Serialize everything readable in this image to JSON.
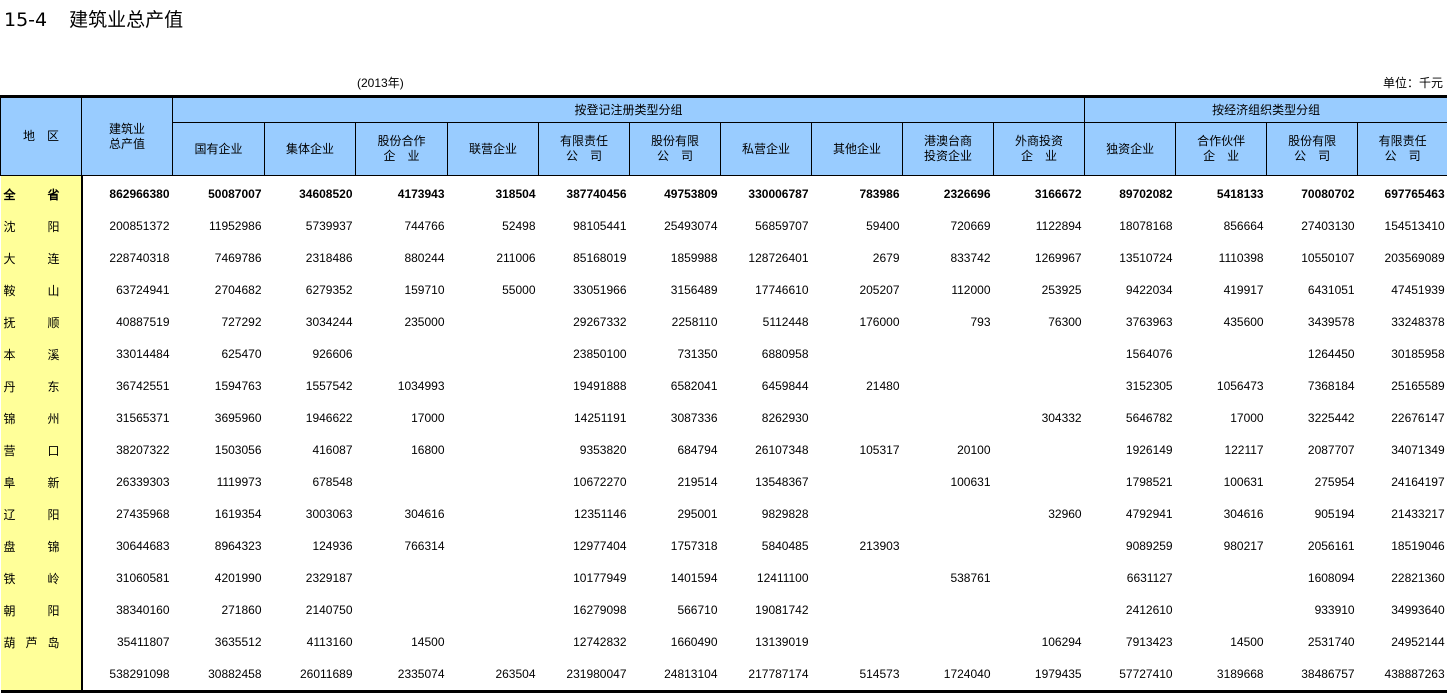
{
  "title": {
    "number": "15-4",
    "text": "建筑业总产值"
  },
  "year": "(2013年)",
  "unit": "单位：千元",
  "header": {
    "region": "地　区",
    "total": "建筑业\n总产值",
    "group1": "按登记注册类型分组",
    "group2": "按经济组织类型分组",
    "group1_cols": [
      "国有企业",
      "集体企业",
      "股份合作\n企　业",
      "联营企业",
      "有限责任\n公　司",
      "股份有限\n公　司",
      "私营企业",
      "其他企业",
      "港澳台商\n投资企业",
      "外商投资\n企　业"
    ],
    "group2_cols": [
      "独资企业",
      "合作伙伴\n企　业",
      "股份有限\n公　司",
      "有限责任\n公　司"
    ]
  },
  "colors": {
    "header_bg": "#99ccff",
    "region_bg": "#ffff99"
  },
  "rows": [
    {
      "region": "全 省",
      "values": [
        "862966380",
        "50087007",
        "34608520",
        "4173943",
        "318504",
        "387740456",
        "49753809",
        "330006787",
        "783986",
        "2326696",
        "3166672",
        "89702082",
        "5418133",
        "70080702",
        "697765463"
      ]
    },
    {
      "region": "沈 阳",
      "values": [
        "200851372",
        "11952986",
        "5739937",
        "744766",
        "52498",
        "98105441",
        "25493074",
        "56859707",
        "59400",
        "720669",
        "1122894",
        "18078168",
        "856664",
        "27403130",
        "154513410"
      ]
    },
    {
      "region": "大 连",
      "values": [
        "228740318",
        "7469786",
        "2318486",
        "880244",
        "211006",
        "85168019",
        "1859988",
        "128726401",
        "2679",
        "833742",
        "1269967",
        "13510724",
        "1110398",
        "10550107",
        "203569089"
      ]
    },
    {
      "region": "鞍 山",
      "values": [
        "63724941",
        "2704682",
        "6279352",
        "159710",
        "55000",
        "33051966",
        "3156489",
        "17746610",
        "205207",
        "112000",
        "253925",
        "9422034",
        "419917",
        "6431051",
        "47451939"
      ]
    },
    {
      "region": "抚 顺",
      "values": [
        "40887519",
        "727292",
        "3034244",
        "235000",
        "",
        "29267332",
        "2258110",
        "5112448",
        "176000",
        "793",
        "76300",
        "3763963",
        "435600",
        "3439578",
        "33248378"
      ]
    },
    {
      "region": "本 溪",
      "values": [
        "33014484",
        "625470",
        "926606",
        "",
        "",
        "23850100",
        "731350",
        "6880958",
        "",
        "",
        "",
        "1564076",
        "",
        "1264450",
        "30185958"
      ]
    },
    {
      "region": "丹 东",
      "values": [
        "36742551",
        "1594763",
        "1557542",
        "1034993",
        "",
        "19491888",
        "6582041",
        "6459844",
        "21480",
        "",
        "",
        "3152305",
        "1056473",
        "7368184",
        "25165589"
      ]
    },
    {
      "region": "锦 州",
      "values": [
        "31565371",
        "3695960",
        "1946622",
        "17000",
        "",
        "14251191",
        "3087336",
        "8262930",
        "",
        "",
        "304332",
        "5646782",
        "17000",
        "3225442",
        "22676147"
      ]
    },
    {
      "region": "营 口",
      "values": [
        "38207322",
        "1503056",
        "416087",
        "16800",
        "",
        "9353820",
        "684794",
        "26107348",
        "105317",
        "20100",
        "",
        "1926149",
        "122117",
        "2087707",
        "34071349"
      ]
    },
    {
      "region": "阜 新",
      "values": [
        "26339303",
        "1119973",
        "678548",
        "",
        "",
        "10672270",
        "219514",
        "13548367",
        "",
        "100631",
        "",
        "1798521",
        "100631",
        "275954",
        "24164197"
      ]
    },
    {
      "region": "辽 阳",
      "values": [
        "27435968",
        "1619354",
        "3003063",
        "304616",
        "",
        "12351146",
        "295001",
        "9829828",
        "",
        "",
        "32960",
        "4792941",
        "304616",
        "905194",
        "21433217"
      ]
    },
    {
      "region": "盘 锦",
      "values": [
        "30644683",
        "8964323",
        "124936",
        "766314",
        "",
        "12977404",
        "1757318",
        "5840485",
        "213903",
        "",
        "",
        "9089259",
        "980217",
        "2056161",
        "18519046"
      ]
    },
    {
      "region": "铁 岭",
      "values": [
        "31060581",
        "4201990",
        "2329187",
        "",
        "",
        "10177949",
        "1401594",
        "12411100",
        "",
        "538761",
        "",
        "6631127",
        "",
        "1608094",
        "22821360"
      ]
    },
    {
      "region": "朝 阳",
      "values": [
        "38340160",
        "271860",
        "2140750",
        "",
        "",
        "16279098",
        "566710",
        "19081742",
        "",
        "",
        "",
        "2412610",
        "",
        "933910",
        "34993640"
      ]
    },
    {
      "region": "葫 芦 岛",
      "values": [
        "35411807",
        "3635512",
        "4113160",
        "14500",
        "",
        "12742832",
        "1660490",
        "13139019",
        "",
        "",
        "106294",
        "7913423",
        "14500",
        "2531740",
        "24952144"
      ]
    },
    {
      "region": "",
      "values": [
        "538291098",
        "30882458",
        "26011689",
        "2335074",
        "263504",
        "231980047",
        "24813104",
        "217787174",
        "514573",
        "1724040",
        "1979435",
        "57727410",
        "3189668",
        "38486757",
        "438887263"
      ]
    }
  ]
}
